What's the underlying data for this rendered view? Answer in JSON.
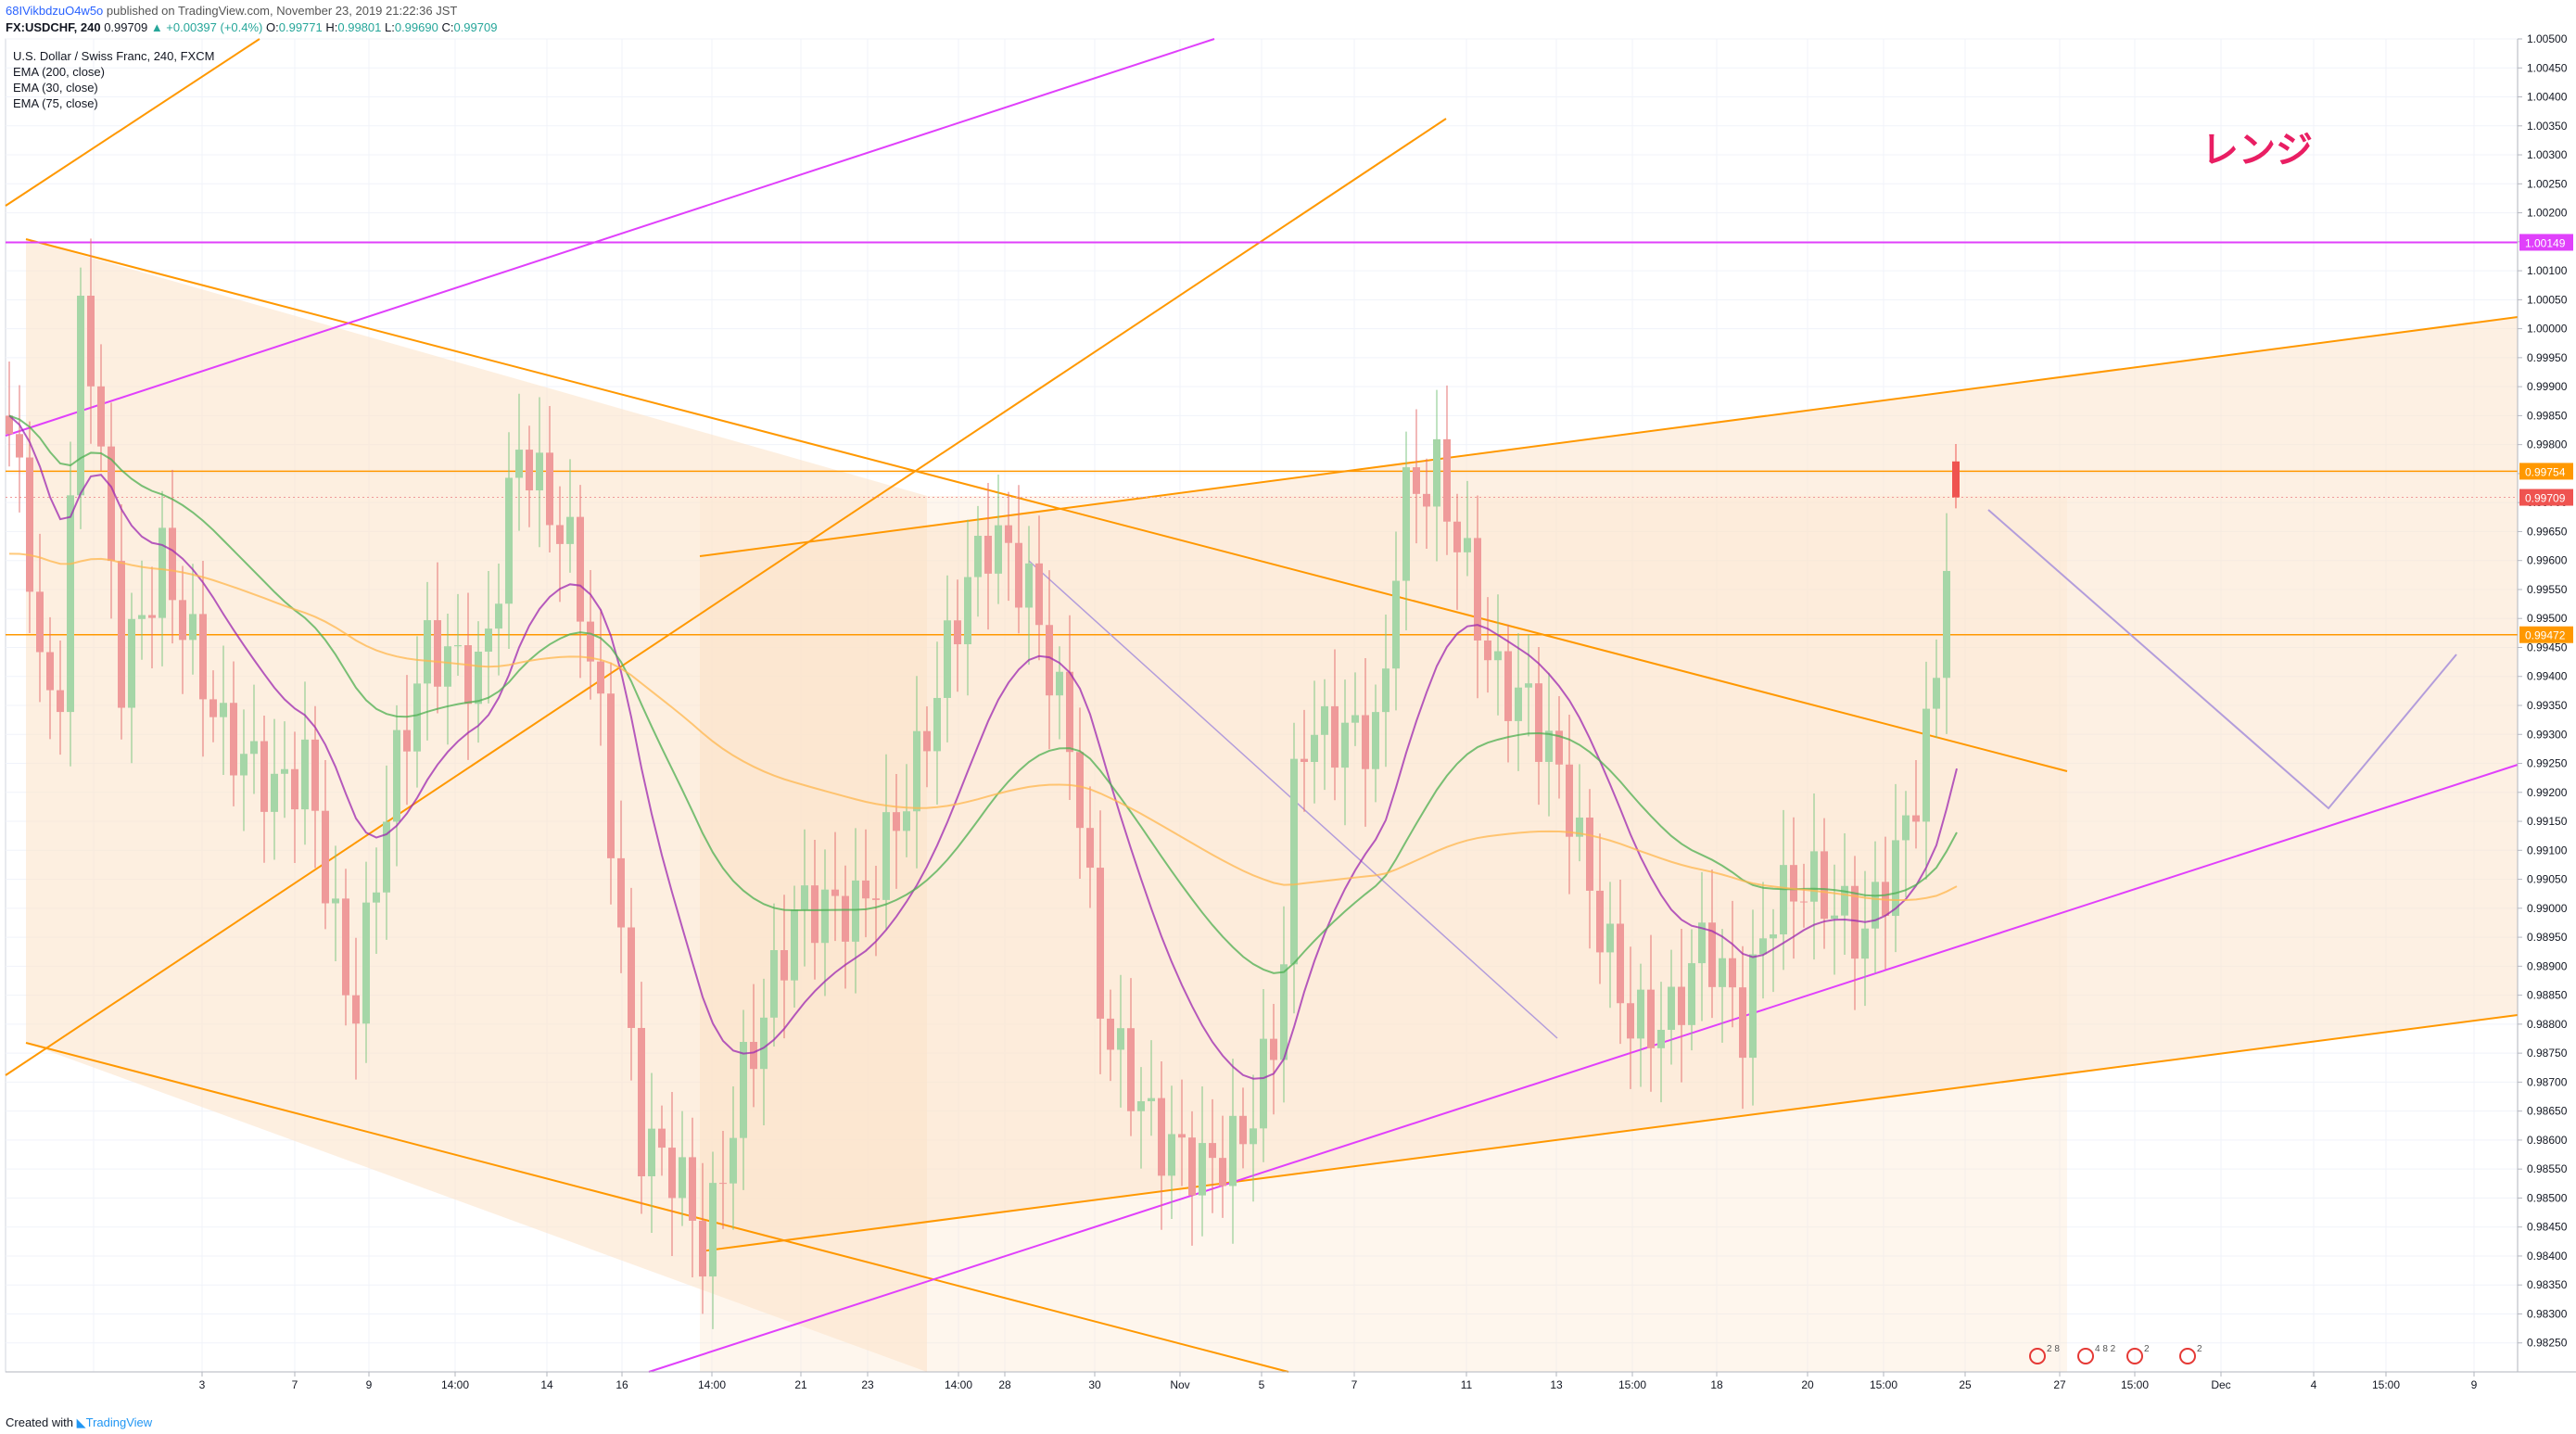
{
  "header": {
    "user": "68IVikbdzuO4w5o",
    "published": "published on TradingView.com, November 23, 2019 21:22:36 JST",
    "symbol": "FX:USDCHF, 240",
    "last": "0.99709",
    "change": "▲ +0.00397 (+0.4%)",
    "open_label": "O:",
    "open": "0.99771",
    "high_label": "H:",
    "high": "0.99801",
    "low_label": "L:",
    "low": "0.99690",
    "close_label": "C:",
    "close": "0.99709"
  },
  "legend": {
    "title": "U.S. Dollar / Swiss Franc, 240, FXCM",
    "ema200": "EMA (200, close)",
    "ema30": "EMA (30, close)",
    "ema75": "EMA (75, close)"
  },
  "footer": {
    "created": "Created with",
    "brand": "TradingView"
  },
  "chart_data": {
    "type": "candlestick",
    "annotation_text": "レンジ",
    "annotation_color": "#e91e63",
    "y_range": [
      0.982,
      1.005
    ],
    "y_ticks": [
      "1.00500",
      "1.00450",
      "1.00400",
      "1.00350",
      "1.00300",
      "1.00250",
      "1.00200",
      "1.00150",
      "1.00100",
      "1.00050",
      "1.00000",
      "0.99950",
      "0.99900",
      "0.99850",
      "0.99800",
      "0.99750",
      "0.99700",
      "0.99650",
      "0.99600",
      "0.99550",
      "0.99500",
      "0.99450",
      "0.99400",
      "0.99350",
      "0.99300",
      "0.99250",
      "0.99200",
      "0.99150",
      "0.99100",
      "0.99050",
      "0.99000",
      "0.98950",
      "0.98900",
      "0.98850",
      "0.98800",
      "0.98750",
      "0.98700",
      "0.98650",
      "0.98600",
      "0.98550",
      "0.98500",
      "0.98450",
      "0.98400",
      "0.98350",
      "0.98300",
      "0.98250"
    ],
    "x_ticks": [
      "3",
      "7",
      "9",
      "14:00",
      "14",
      "16",
      "14:00",
      "21",
      "23",
      "14:00",
      "28",
      "30",
      "Nov",
      "5",
      "7",
      "11",
      "13",
      "15:00",
      "18",
      "20",
      "15:00",
      "25",
      "27",
      "15:00",
      "Dec",
      "4",
      "15:00",
      "9"
    ],
    "price_labels": [
      {
        "value": "1.00149",
        "color": "#e040fb"
      },
      {
        "value": "0.99754",
        "color": "#ff9800"
      },
      {
        "value": "0.99709",
        "color": "#ef5350"
      },
      {
        "value": "0.99472",
        "color": "#ff9800"
      }
    ],
    "horizontal_lines": [
      1.00149,
      0.99754,
      0.99472
    ],
    "colors": {
      "up": "#26a69a",
      "down": "#ef5350",
      "ema200": "#ffb74d",
      "ema30": "#9c27b0",
      "ema75": "#4caf50",
      "channel": "#ff9800",
      "trend": "#e040fb",
      "zone": "#fce4cc"
    },
    "event_icons": [
      "2 8",
      "4 8 2",
      "2",
      "2"
    ],
    "candles": [],
    "ema30": [],
    "ema75": [],
    "ema200": []
  }
}
